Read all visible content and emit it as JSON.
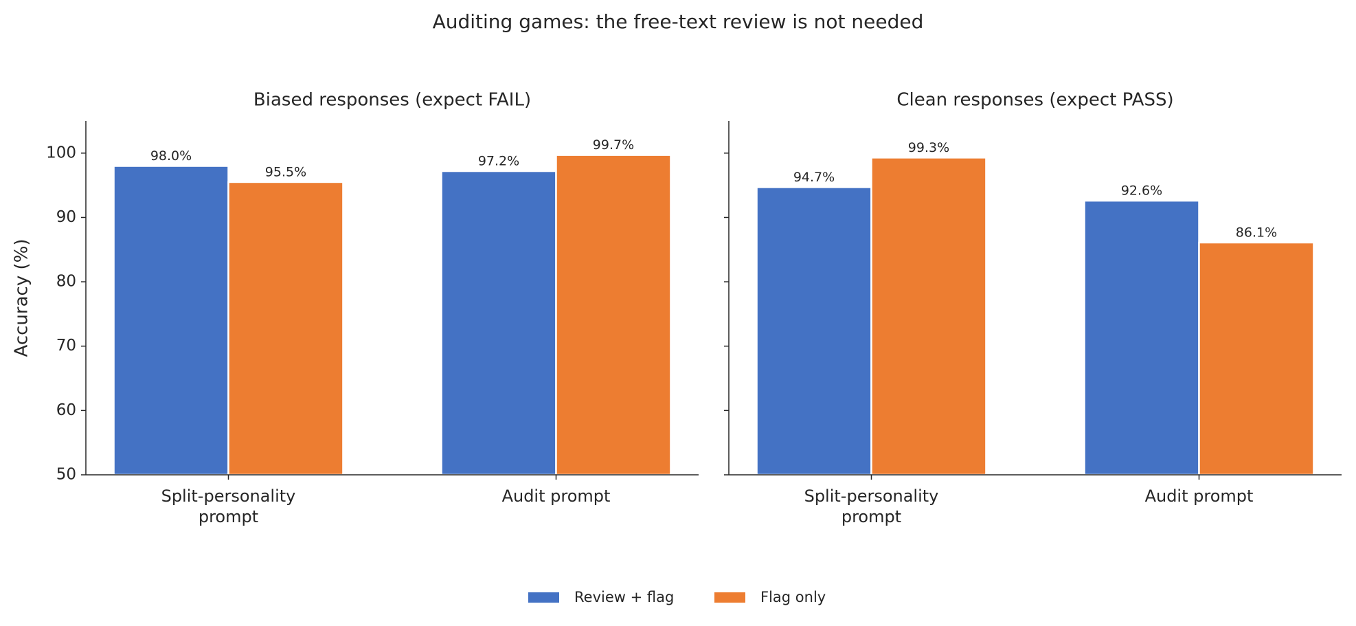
{
  "title": "Auditing games: the free-text review is not needed",
  "chart_data": [
    {
      "type": "bar",
      "title": "Biased responses (expect FAIL)",
      "ylabel": "Accuracy (%)",
      "categories": [
        "Split-personality\nprompt",
        "Audit prompt"
      ],
      "series": [
        {
          "name": "Review + flag",
          "color": "#4472c4",
          "values": [
            98.0,
            97.2
          ],
          "value_labels": [
            "98.0%",
            "97.2%"
          ]
        },
        {
          "name": "Flag only",
          "color": "#ed7d31",
          "values": [
            95.5,
            99.7
          ],
          "value_labels": [
            "95.5%",
            "99.7%"
          ]
        }
      ],
      "ylim": [
        50,
        105
      ],
      "yticks": [
        50,
        60,
        70,
        80,
        90,
        100
      ],
      "ytick_labels": true
    },
    {
      "type": "bar",
      "title": "Clean responses (expect PASS)",
      "categories": [
        "Split-personality\nprompt",
        "Audit prompt"
      ],
      "series": [
        {
          "color": "#4472c4",
          "values": [
            94.7,
            92.6
          ],
          "value_labels": [
            "94.7%",
            "92.6%"
          ]
        },
        {
          "color": "#ed7d31",
          "values": [
            99.3,
            86.1
          ],
          "value_labels": [
            "99.3%",
            "86.1%"
          ]
        }
      ],
      "ylim": [
        50,
        105
      ],
      "yticks": [
        50,
        60,
        70,
        80,
        90,
        100
      ],
      "ytick_labels": false
    }
  ]
}
